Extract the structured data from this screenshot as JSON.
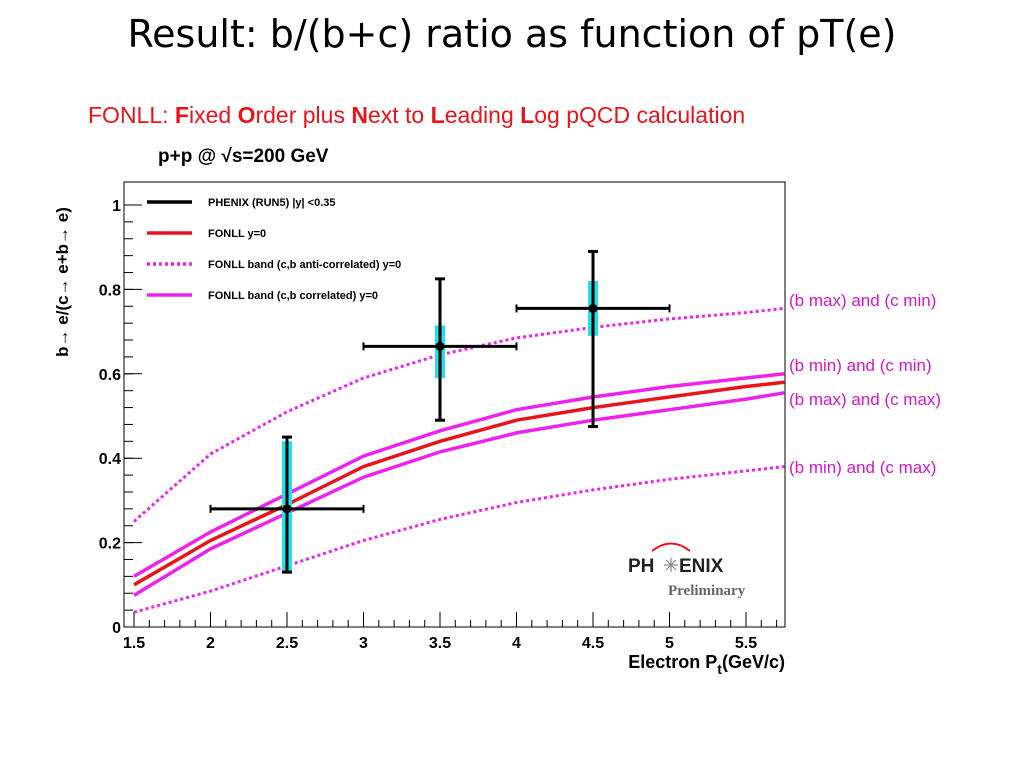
{
  "slide": {
    "title": "Result: b/(b+c) ratio as function of pT(e)",
    "fonll_prefix": "FONLL: ",
    "fonll_parts": [
      {
        "b": "F",
        "t": "ixed "
      },
      {
        "b": "O",
        "t": "rder plus "
      },
      {
        "b": "N",
        "t": "ext to "
      },
      {
        "b": "L",
        "t": "eading "
      },
      {
        "b": "L",
        "t": "og pQCD calculation"
      }
    ]
  },
  "chart_data": {
    "type": "line",
    "title": "p+p @ √s=200 GeV",
    "xlabel": "Electron P_t(GeV/c)",
    "ylabel": "b→ e/(c→ e+b→ e)",
    "xlim": [
      1.5,
      5.75
    ],
    "ylim": [
      0,
      1.05
    ],
    "xticks": [
      "1.5",
      "2",
      "2.5",
      "3",
      "3.5",
      "4",
      "4.5",
      "5",
      "5.5"
    ],
    "yticks": [
      "0",
      "0.2",
      "0.4",
      "0.6",
      "0.8",
      "1"
    ],
    "legend_position": "top-left",
    "legend": [
      {
        "label": "PHENIX (RUN5) |y| <0.35",
        "color": "#000000",
        "style": "solid"
      },
      {
        "label": "FONLL y=0",
        "color": "#e8141c",
        "style": "solid"
      },
      {
        "label": "FONLL band (c,b anti-correlated) y=0",
        "color": "#ee22ee",
        "style": "dotted"
      },
      {
        "label": "FONLL band (c,b correlated) y=0",
        "color": "#ee22ee",
        "style": "solid"
      }
    ],
    "data_points": [
      {
        "x": 2.5,
        "y": 0.28,
        "xerr": 0.5,
        "yerr_low": 0.15,
        "yerr_high": 0.17,
        "syst_low": 0.15,
        "syst_high": 0.16
      },
      {
        "x": 3.5,
        "y": 0.665,
        "xerr": 0.5,
        "yerr_low": 0.175,
        "yerr_high": 0.16,
        "syst_low": 0.075,
        "syst_high": 0.05
      },
      {
        "x": 4.5,
        "y": 0.755,
        "xerr": 0.5,
        "yerr_low": 0.28,
        "yerr_high": 0.135,
        "syst_low": 0.065,
        "syst_high": 0.065
      }
    ],
    "series": [
      {
        "color": "#e8141c",
        "style": "solid",
        "x": [
          1.5,
          2.0,
          2.5,
          3.0,
          3.5,
          4.0,
          4.5,
          5.0,
          5.5,
          5.75
        ],
        "y": [
          0.1,
          0.205,
          0.29,
          0.38,
          0.44,
          0.49,
          0.52,
          0.545,
          0.57,
          0.58
        ]
      },
      {
        "color": "#ee22ee",
        "style": "solid",
        "x": [
          1.5,
          2.0,
          2.5,
          3.0,
          3.5,
          4.0,
          4.5,
          5.0,
          5.5,
          5.75
        ],
        "y": [
          0.12,
          0.225,
          0.315,
          0.405,
          0.465,
          0.515,
          0.545,
          0.57,
          0.59,
          0.6
        ]
      },
      {
        "color": "#ee22ee",
        "style": "solid",
        "x": [
          1.5,
          2.0,
          2.5,
          3.0,
          3.5,
          4.0,
          4.5,
          5.0,
          5.5,
          5.75
        ],
        "y": [
          0.075,
          0.185,
          0.27,
          0.355,
          0.415,
          0.46,
          0.49,
          0.515,
          0.54,
          0.555
        ]
      },
      {
        "color": "#ee22ee",
        "style": "dotted",
        "x": [
          1.5,
          2.0,
          2.5,
          3.0,
          3.5,
          4.0,
          4.5,
          5.0,
          5.5,
          5.75
        ],
        "y": [
          0.25,
          0.41,
          0.51,
          0.59,
          0.645,
          0.685,
          0.71,
          0.73,
          0.745,
          0.755
        ]
      },
      {
        "color": "#ee22ee",
        "style": "dotted",
        "x": [
          1.5,
          2.0,
          2.5,
          3.0,
          3.5,
          4.0,
          4.5,
          5.0,
          5.5,
          5.75
        ],
        "y": [
          0.035,
          0.085,
          0.145,
          0.205,
          0.255,
          0.295,
          0.325,
          0.35,
          0.37,
          0.38
        ]
      }
    ],
    "annotations": [
      {
        "text": "(b max)  and (c min)"
      },
      {
        "text": "(b min)  and (c min)"
      },
      {
        "text": "(b max)  and (c max)"
      },
      {
        "text": "(b min)  and (c max)"
      }
    ],
    "logo": {
      "text_left": "PH",
      "text_right": "ENIX",
      "subtitle": "Preliminary"
    }
  },
  "colors": {
    "stat_error": "#000000",
    "syst_error": "#22e0e8",
    "fonll_central": "#e8141c",
    "fonll_band": "#ee22ee",
    "annotation_text": "#d516c8",
    "title_red": "#e8141c"
  }
}
